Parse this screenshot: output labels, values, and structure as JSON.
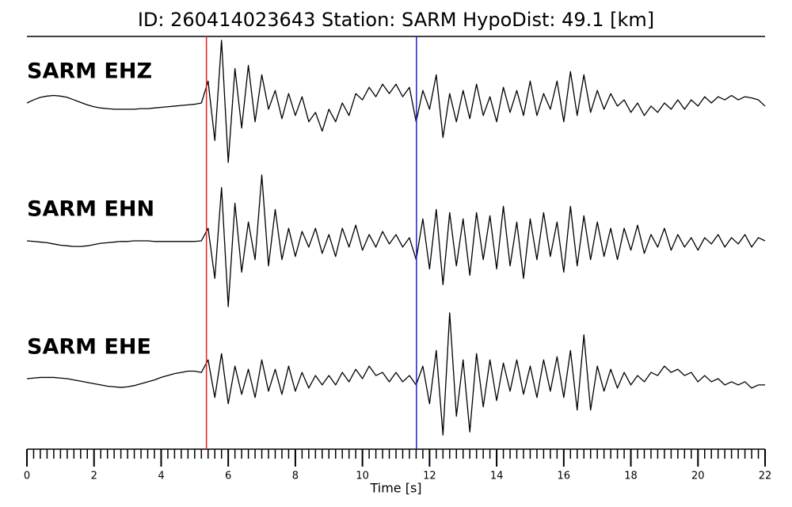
{
  "chart_data": {
    "type": "line",
    "title": "ID: 260414023643   Station: SARM   HypoDist:    49.1 [km]",
    "xlabel": "Time [s]",
    "xlim": [
      0,
      22
    ],
    "xticks": [
      0,
      2,
      4,
      6,
      8,
      10,
      12,
      14,
      16,
      18,
      20,
      22
    ],
    "xticks_minor": [
      0,
      0.2,
      0.4,
      0.6,
      0.8,
      1,
      1.2,
      1.4,
      1.6,
      1.8,
      2,
      2.2,
      2.4,
      2.6,
      2.8,
      3,
      3.2,
      3.4,
      3.6,
      3.8,
      4,
      4.2,
      4.4,
      4.6,
      4.8,
      5,
      5.2,
      5.4,
      5.6,
      5.8,
      6,
      6.2,
      6.4,
      6.6,
      6.8,
      7,
      7.2,
      7.4,
      7.6,
      7.8,
      8,
      8.2,
      8.4,
      8.6,
      8.8,
      9,
      9.2,
      9.4,
      9.6,
      9.8,
      10,
      10.2,
      10.4,
      10.6,
      10.8,
      11,
      11.2,
      11.4,
      11.6,
      11.8,
      12,
      12.2,
      12.4,
      12.6,
      12.8,
      13,
      13.2,
      13.4,
      13.6,
      13.8,
      14,
      14.2,
      14.4,
      14.6,
      14.8,
      15,
      15.2,
      15.4,
      15.6,
      15.8,
      16,
      16.2,
      16.4,
      16.6,
      16.8,
      17,
      17.2,
      17.4,
      17.6,
      17.8,
      18,
      18.2,
      18.4,
      18.6,
      18.8,
      19,
      19.2,
      19.4,
      19.6,
      19.8,
      20,
      20.2,
      20.4,
      20.6,
      20.8,
      21,
      21.2,
      21.4,
      21.6,
      21.8,
      22
    ],
    "ylim": [
      -1.1,
      1.1
    ],
    "picks": [
      {
        "value": 5.35,
        "color": "#e8231f"
      },
      {
        "value": 11.61,
        "color": "#1f1fd0"
      }
    ],
    "label_color": "#4a9a0a",
    "x": [
      0,
      0.2,
      0.4,
      0.6,
      0.8,
      1,
      1.2,
      1.4,
      1.6,
      1.8,
      2,
      2.2,
      2.4,
      2.6,
      2.8,
      3,
      3.2,
      3.4,
      3.6,
      3.8,
      4,
      4.2,
      4.4,
      4.6,
      4.8,
      5,
      5.2,
      5.4,
      5.6,
      5.8,
      6,
      6.2,
      6.4,
      6.6,
      6.8,
      7,
      7.2,
      7.4,
      7.6,
      7.8,
      8,
      8.2,
      8.4,
      8.6,
      8.8,
      9,
      9.2,
      9.4,
      9.6,
      9.8,
      10,
      10.2,
      10.4,
      10.6,
      10.8,
      11,
      11.2,
      11.4,
      11.6,
      11.8,
      12,
      12.2,
      12.4,
      12.6,
      12.8,
      13,
      13.2,
      13.4,
      13.6,
      13.8,
      14,
      14.2,
      14.4,
      14.6,
      14.8,
      15,
      15.2,
      15.4,
      15.6,
      15.8,
      16,
      16.2,
      16.4,
      16.6,
      16.8,
      17,
      17.2,
      17.4,
      17.6,
      17.8,
      18,
      18.2,
      18.4,
      18.6,
      18.8,
      19,
      19.2,
      19.4,
      19.6,
      19.8,
      20,
      20.2,
      20.4,
      20.6,
      20.8,
      21,
      21.2,
      21.4,
      21.6,
      21.8,
      22
    ],
    "series": [
      {
        "name": "SARM EHZ",
        "color": "#000000",
        "values": [
          0,
          0.05,
          0.09,
          0.11,
          0.12,
          0.11,
          0.09,
          0.05,
          0.01,
          -0.03,
          -0.06,
          -0.08,
          -0.09,
          -0.1,
          -0.1,
          -0.1,
          -0.1,
          -0.09,
          -0.09,
          -0.08,
          -0.07,
          -0.06,
          -0.05,
          -0.04,
          -0.03,
          -0.02,
          0,
          0.35,
          -0.6,
          1,
          -0.95,
          0.55,
          -0.4,
          0.6,
          -0.3,
          0.45,
          -0.1,
          0.2,
          -0.25,
          0.15,
          -0.2,
          0.1,
          -0.3,
          -0.15,
          -0.45,
          -0.1,
          -0.3,
          0,
          -0.2,
          0.15,
          0.05,
          0.25,
          0.1,
          0.3,
          0.15,
          0.3,
          0.1,
          0.25,
          -0.3,
          0.2,
          -0.1,
          0.45,
          -0.55,
          0.15,
          -0.3,
          0.2,
          -0.25,
          0.3,
          -0.2,
          0.1,
          -0.3,
          0.25,
          -0.15,
          0.2,
          -0.2,
          0.35,
          -0.2,
          0.15,
          -0.1,
          0.35,
          -0.3,
          0.5,
          -0.2,
          0.45,
          -0.15,
          0.2,
          -0.1,
          0.15,
          -0.05,
          0.05,
          -0.15,
          0,
          -0.2,
          -0.05,
          -0.15,
          0,
          -0.1,
          0.05,
          -0.1,
          0.05,
          -0.05,
          0.1,
          0,
          0.1,
          0.05,
          0.12,
          0.05,
          0.1,
          0.08,
          0.05,
          -0.05
        ]
      },
      {
        "name": "SARM EHN",
        "color": "#000000",
        "values": [
          0,
          -0.01,
          -0.02,
          -0.03,
          -0.05,
          -0.07,
          -0.08,
          -0.09,
          -0.09,
          -0.08,
          -0.06,
          -0.04,
          -0.03,
          -0.02,
          -0.01,
          -0.01,
          0,
          0,
          0,
          -0.01,
          -0.01,
          -0.01,
          -0.01,
          -0.01,
          -0.01,
          -0.01,
          0,
          0.2,
          -0.6,
          0.85,
          -1.05,
          0.6,
          -0.5,
          0.3,
          -0.3,
          1.05,
          -0.4,
          0.5,
          -0.3,
          0.2,
          -0.25,
          0.15,
          -0.1,
          0.2,
          -0.2,
          0.1,
          -0.25,
          0.2,
          -0.1,
          0.25,
          -0.15,
          0.1,
          -0.1,
          0.15,
          -0.05,
          0.1,
          -0.1,
          0.05,
          -0.3,
          0.35,
          -0.45,
          0.5,
          -0.7,
          0.45,
          -0.4,
          0.35,
          -0.55,
          0.45,
          -0.3,
          0.4,
          -0.45,
          0.55,
          -0.4,
          0.3,
          -0.6,
          0.35,
          -0.3,
          0.45,
          -0.25,
          0.3,
          -0.5,
          0.55,
          -0.4,
          0.4,
          -0.3,
          0.3,
          -0.25,
          0.2,
          -0.3,
          0.2,
          -0.15,
          0.25,
          -0.2,
          0.1,
          -0.1,
          0.2,
          -0.15,
          0.1,
          -0.1,
          0.05,
          -0.15,
          0.05,
          -0.05,
          0.1,
          -0.1,
          0.05,
          -0.05,
          0.1,
          -0.1,
          0.05,
          0
        ]
      },
      {
        "name": "SARM EHE",
        "color": "#000000",
        "values": [
          0,
          0.01,
          0.02,
          0.02,
          0.02,
          0.01,
          0,
          -0.02,
          -0.04,
          -0.06,
          -0.08,
          -0.1,
          -0.12,
          -0.13,
          -0.14,
          -0.13,
          -0.11,
          -0.08,
          -0.05,
          -0.02,
          0.02,
          0.05,
          0.08,
          0.1,
          0.12,
          0.12,
          0.1,
          0.3,
          -0.3,
          0.4,
          -0.4,
          0.2,
          -0.25,
          0.15,
          -0.3,
          0.3,
          -0.2,
          0.15,
          -0.25,
          0.2,
          -0.2,
          0.1,
          -0.15,
          0.05,
          -0.1,
          0.05,
          -0.1,
          0.1,
          -0.05,
          0.15,
          0,
          0.2,
          0.05,
          0.1,
          -0.05,
          0.1,
          -0.05,
          0.05,
          -0.1,
          0.2,
          -0.4,
          0.45,
          -0.9,
          1.05,
          -0.6,
          0.3,
          -0.85,
          0.4,
          -0.45,
          0.3,
          -0.35,
          0.25,
          -0.2,
          0.3,
          -0.25,
          0.2,
          -0.3,
          0.3,
          -0.2,
          0.35,
          -0.3,
          0.45,
          -0.5,
          0.7,
          -0.5,
          0.2,
          -0.2,
          0.15,
          -0.15,
          0.1,
          -0.1,
          0.05,
          -0.05,
          0.1,
          0.05,
          0.2,
          0.1,
          0.15,
          0.05,
          0.1,
          -0.05,
          0.05,
          -0.05,
          0,
          -0.1,
          -0.05,
          -0.1,
          -0.05,
          -0.15,
          -0.1,
          -0.1
        ]
      }
    ]
  }
}
